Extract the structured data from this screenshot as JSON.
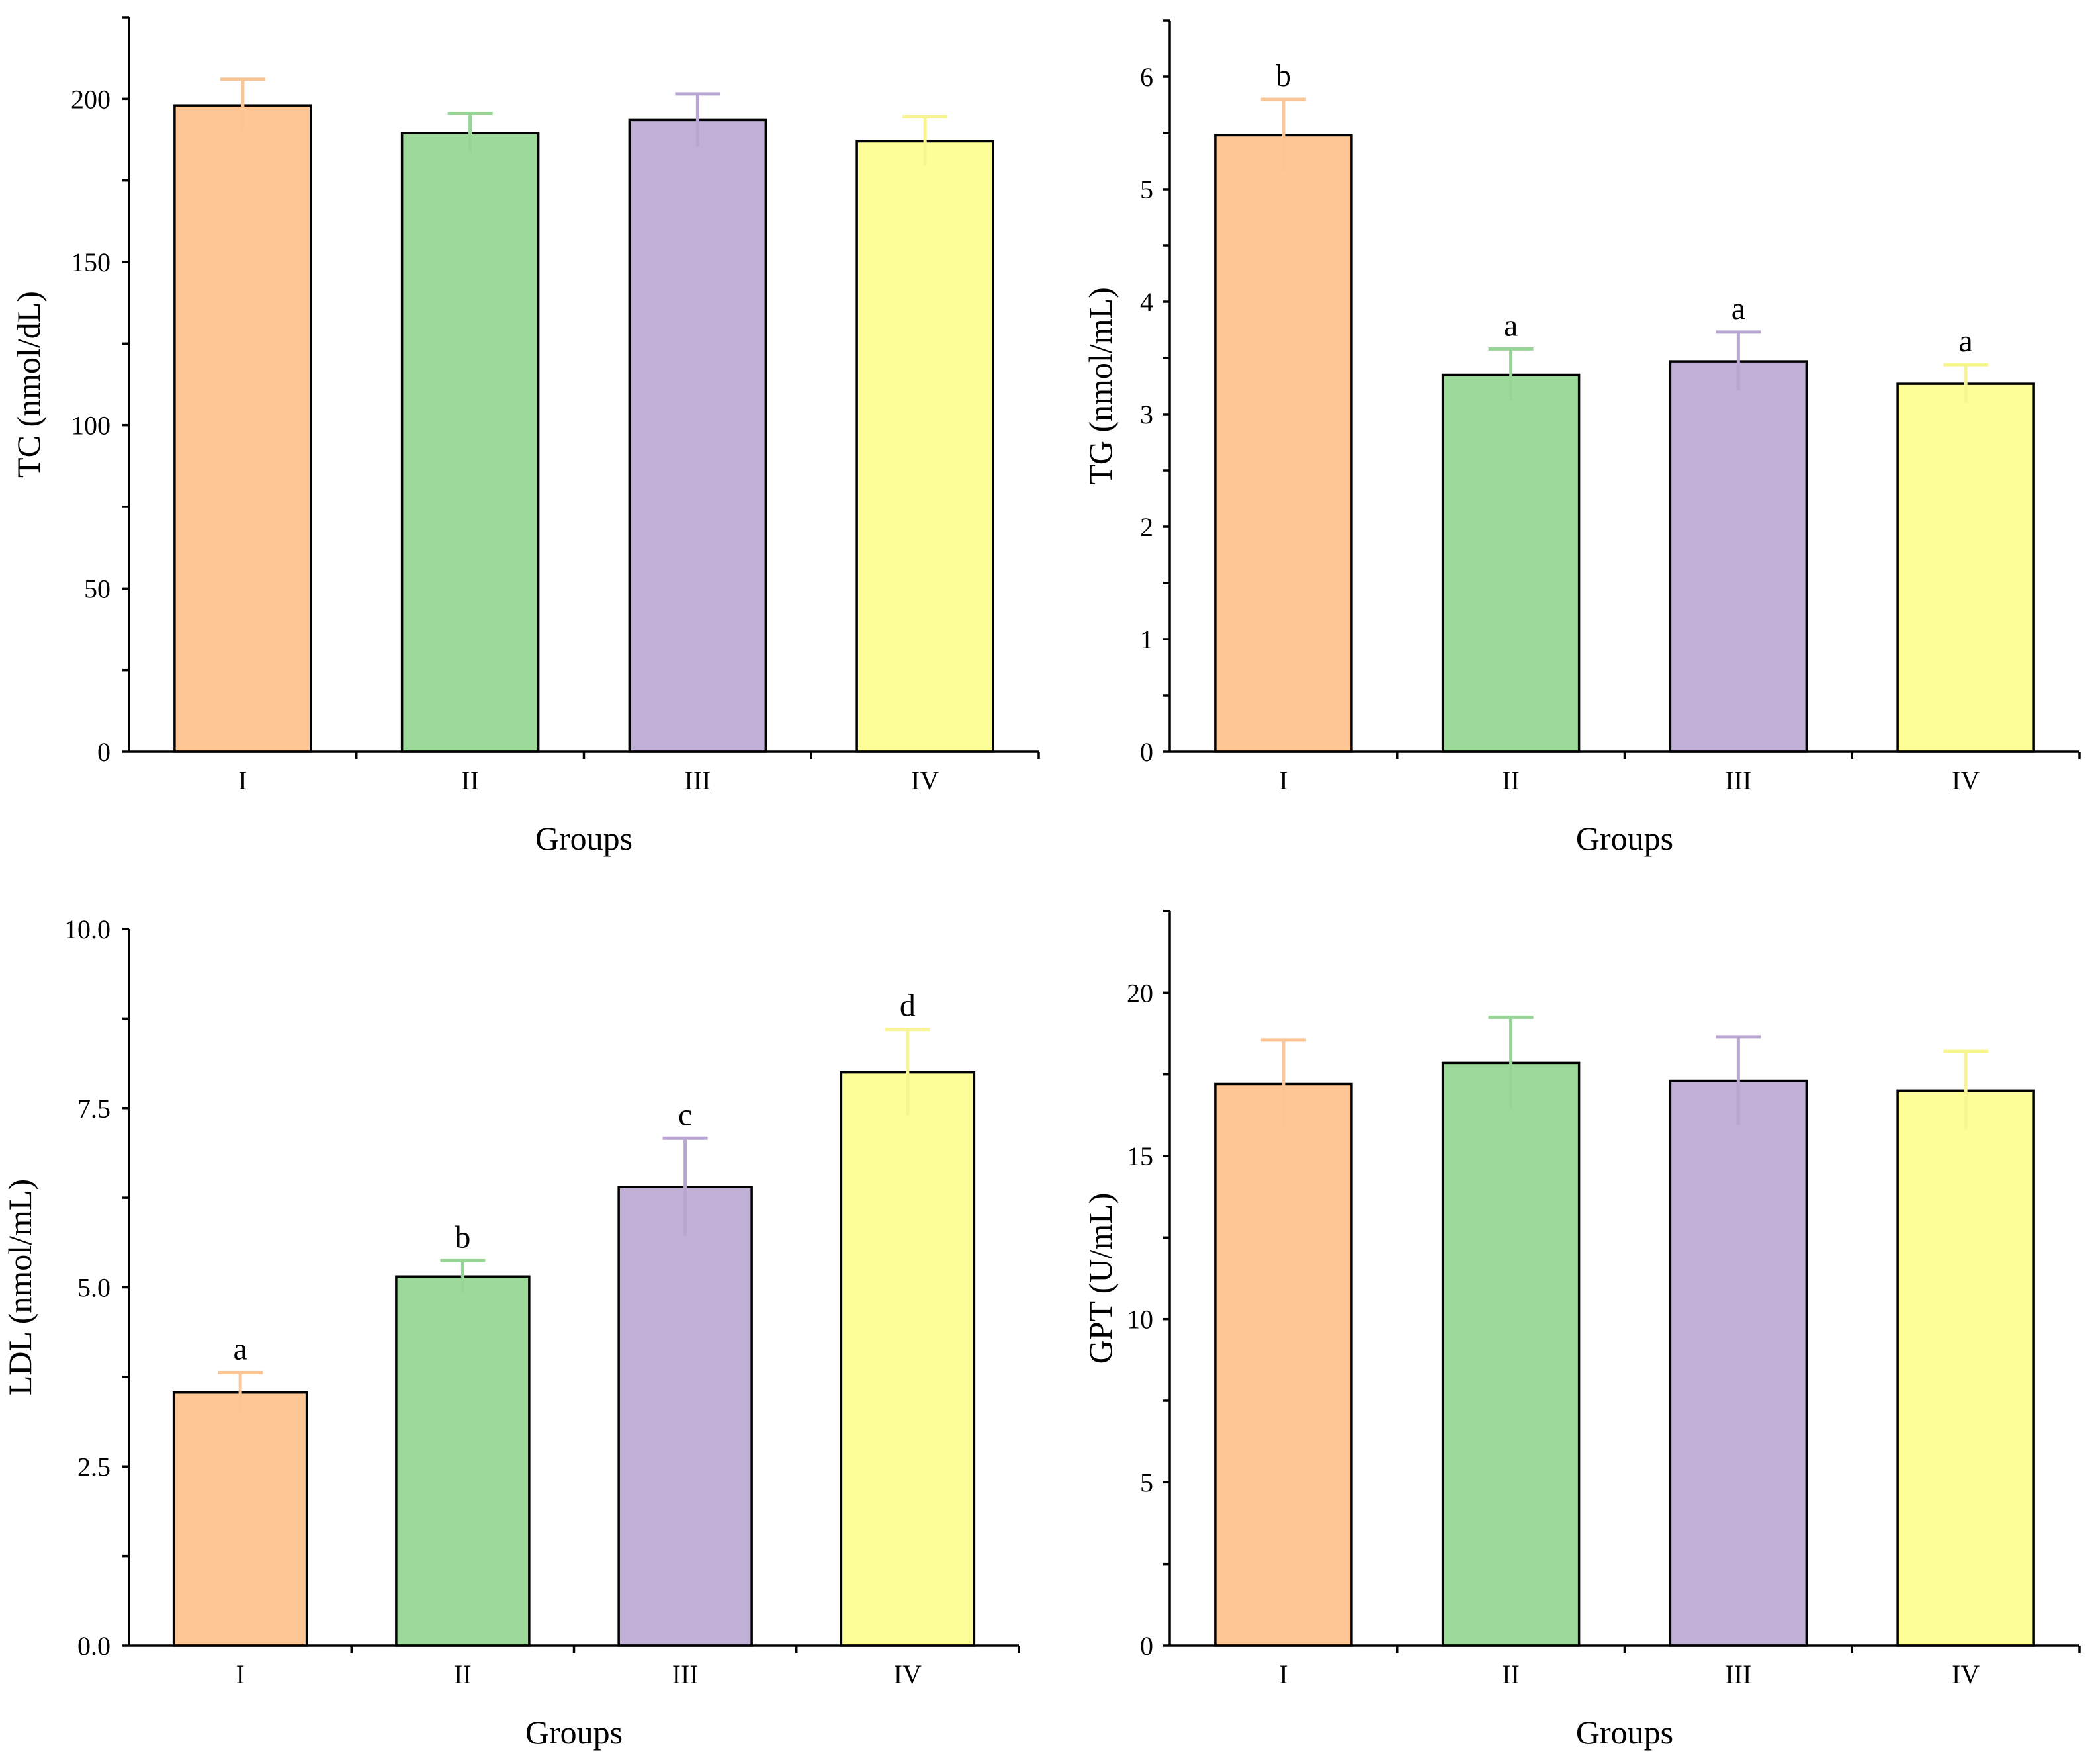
{
  "chart_data": [
    {
      "type": "bar",
      "title": "",
      "xlabel": "Groups",
      "ylabel": "TC (nmol/dL)",
      "categories": [
        "I",
        "II",
        "III",
        "IV"
      ],
      "values": [
        198,
        189.5,
        193.5,
        187
      ],
      "errors": [
        8,
        6,
        8,
        7.5
      ],
      "significance": [
        "",
        "",
        "",
        ""
      ],
      "ylim": [
        0,
        225
      ],
      "yticks": [
        0,
        50,
        100,
        150,
        200
      ],
      "ytick_labels": [
        "0",
        "50",
        "100",
        "150",
        "200"
      ],
      "colors": [
        "#fec695",
        "#9ed99c",
        "#c1b0d6",
        "#fefe98"
      ],
      "error_colors": [
        "#f9c594",
        "#96d596",
        "#b9a6d0",
        "#f7f591"
      ]
    },
    {
      "type": "bar",
      "title": "",
      "xlabel": "Groups",
      "ylabel": "TG (nmol/mL)",
      "categories": [
        "I",
        "II",
        "III",
        "IV"
      ],
      "values": [
        5.48,
        3.35,
        3.47,
        3.27
      ],
      "errors": [
        0.32,
        0.23,
        0.26,
        0.17
      ],
      "significance": [
        "b",
        "a",
        "a",
        "a"
      ],
      "ylim": [
        0,
        6.5
      ],
      "yticks": [
        0,
        1,
        2,
        3,
        4,
        5,
        6
      ],
      "ytick_labels": [
        "0",
        "1",
        "2",
        "3",
        "4",
        "5",
        "6"
      ],
      "colors": [
        "#fec695",
        "#9ed99c",
        "#c1b0d6",
        "#fefe98"
      ],
      "error_colors": [
        "#f9c594",
        "#96d596",
        "#b9a6d0",
        "#f7f591"
      ]
    },
    {
      "type": "bar",
      "title": "",
      "xlabel": "Groups",
      "ylabel": "LDL (nmol/mL)",
      "categories": [
        "I",
        "II",
        "III",
        "IV"
      ],
      "values": [
        3.53,
        5.15,
        6.4,
        8.0
      ],
      "errors": [
        0.28,
        0.22,
        0.68,
        0.6
      ],
      "significance": [
        "a",
        "b",
        "c",
        "d"
      ],
      "ylim": [
        0,
        10
      ],
      "yticks": [
        0,
        2.5,
        5,
        7.5,
        10
      ],
      "ytick_labels": [
        "0.0",
        "2.5",
        "5.0",
        "7.5",
        "10.0"
      ],
      "colors": [
        "#fec695",
        "#9ed99c",
        "#c1b0d6",
        "#fefe98"
      ],
      "error_colors": [
        "#f9c594",
        "#96d596",
        "#b9a6d0",
        "#f7f591"
      ]
    },
    {
      "type": "bar",
      "title": "",
      "xlabel": "Groups",
      "ylabel": "GPT (U/mL)",
      "categories": [
        "I",
        "II",
        "III",
        "IV"
      ],
      "values": [
        17.2,
        17.85,
        17.3,
        17.0
      ],
      "errors": [
        1.35,
        1.4,
        1.35,
        1.2
      ],
      "significance": [
        "",
        "",
        "",
        ""
      ],
      "ylim": [
        0,
        22.5
      ],
      "yticks": [
        0,
        5,
        10,
        15,
        20
      ],
      "ytick_labels": [
        "0",
        "5",
        "10",
        "15",
        "20"
      ],
      "colors": [
        "#fec695",
        "#9ed99c",
        "#c1b0d6",
        "#fefe98"
      ],
      "error_colors": [
        "#f9c594",
        "#96d596",
        "#b9a6d0",
        "#f7f591"
      ]
    }
  ]
}
